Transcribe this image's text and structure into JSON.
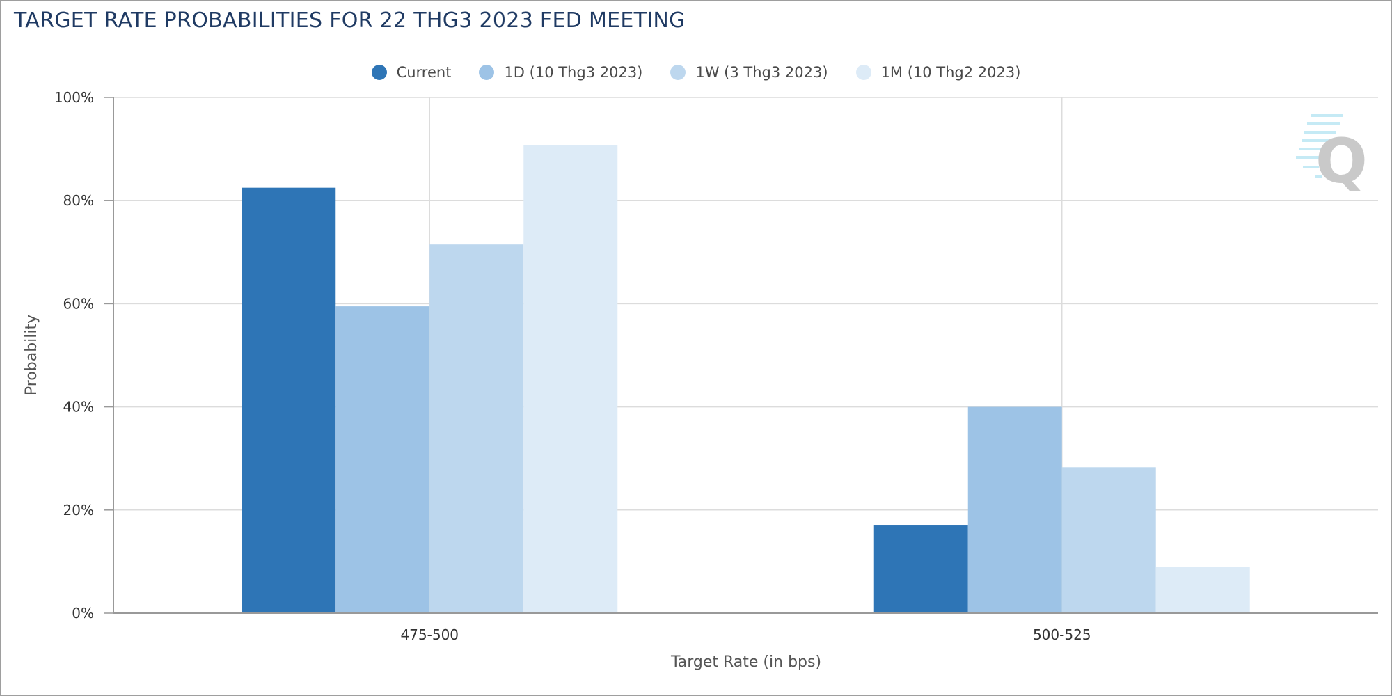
{
  "title": "TARGET RATE PROBABILITIES FOR 22 THG3 2023 FED MEETING",
  "chart_data": {
    "type": "bar",
    "title": "TARGET RATE PROBABILITIES FOR 22 THG3 2023 FED MEETING",
    "categories": [
      "475-500",
      "500-525"
    ],
    "series": [
      {
        "name": "Current",
        "values": [
          82.5,
          17.0
        ],
        "color": "#2e75b6"
      },
      {
        "name": "1D (10 Thg3 2023)",
        "values": [
          59.5,
          40.0
        ],
        "color": "#9dc3e6"
      },
      {
        "name": "1W (3 Thg3 2023)",
        "values": [
          71.5,
          28.3
        ],
        "color": "#bdd7ee"
      },
      {
        "name": "1M (10 Thg2 2023)",
        "values": [
          90.7,
          9.0
        ],
        "color": "#ddebf7"
      }
    ],
    "xlabel": "Target Rate (in bps)",
    "ylabel": "Probability",
    "ylim": [
      0,
      100
    ],
    "yticks": [
      "0%",
      "20%",
      "40%",
      "60%",
      "80%",
      "100%"
    ],
    "grid": true,
    "legend": "top-center"
  }
}
